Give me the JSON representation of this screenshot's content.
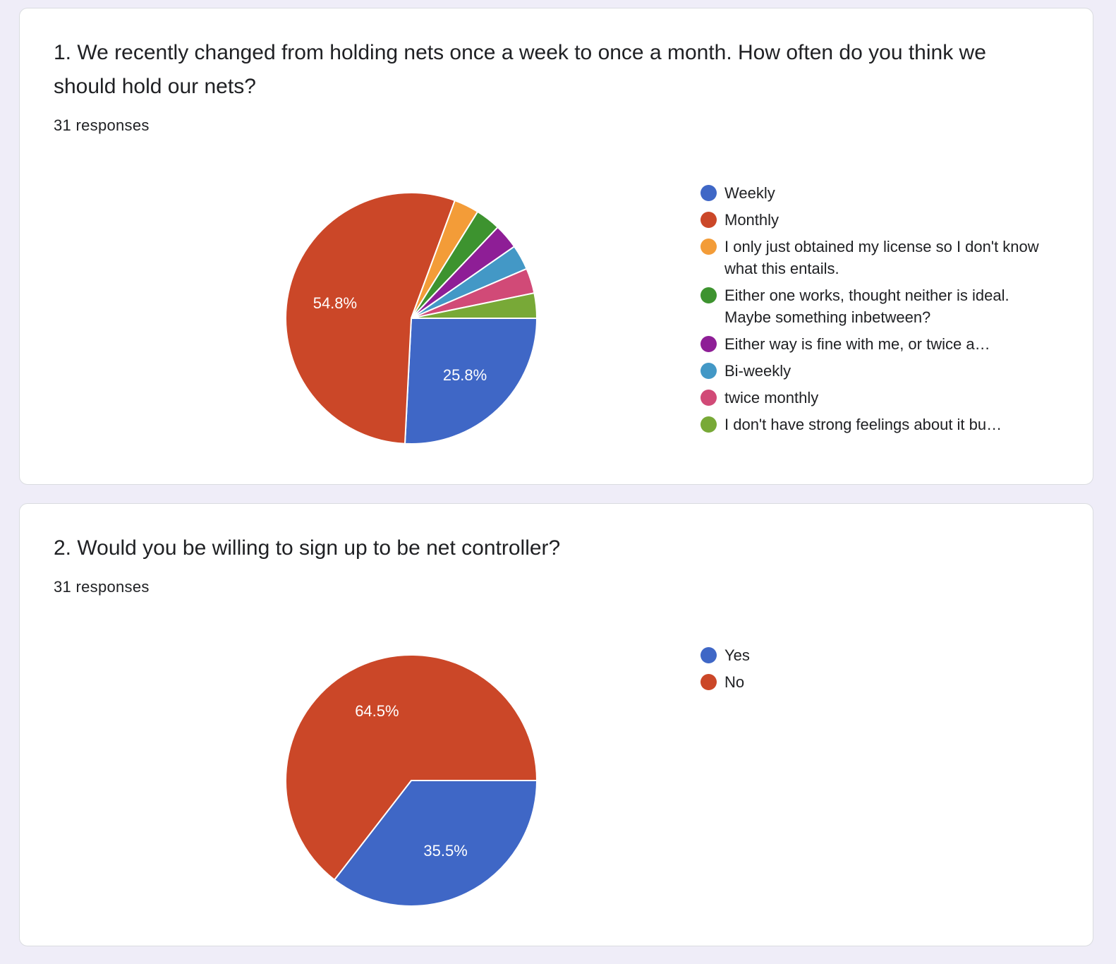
{
  "chart_data": [
    {
      "type": "pie",
      "title": "1. We recently changed from holding nets once a week to once a month. How often do you think we should hold our nets?",
      "responses_label": "31 responses",
      "legend_position": "right",
      "slices": [
        {
          "label": "Weekly",
          "value": 8,
          "percent_label": "25.8%",
          "color": "#3f67c6"
        },
        {
          "label": "Monthly",
          "value": 17,
          "percent_label": "54.8%",
          "color": "#cb4728"
        },
        {
          "label": "I only just obtained my license so I don't know what this entails.",
          "value": 1,
          "percent_label": "",
          "color": "#f39c38"
        },
        {
          "label": "Either one works, thought neither is ideal. Maybe something inbetween?",
          "value": 1,
          "percent_label": "",
          "color": "#3d932f"
        },
        {
          "label": "Either way is fine with me, or twice a…",
          "value": 1,
          "percent_label": "",
          "color": "#8e1e96"
        },
        {
          "label": "Bi-weekly",
          "value": 1,
          "percent_label": "",
          "color": "#4398c6"
        },
        {
          "label": "twice monthly",
          "value": 1,
          "percent_label": "",
          "color": "#d14a77"
        },
        {
          "label": "I don't have strong feelings about it bu…",
          "value": 1,
          "percent_label": "",
          "color": "#78a937"
        }
      ]
    },
    {
      "type": "pie",
      "title": "2. Would you be willing to sign up to be net controller?",
      "responses_label": "31 responses",
      "legend_position": "right",
      "slices": [
        {
          "label": "Yes",
          "value": 11,
          "percent_label": "35.5%",
          "color": "#3f67c6"
        },
        {
          "label": "No",
          "value": 20,
          "percent_label": "64.5%",
          "color": "#cb4728"
        }
      ]
    }
  ]
}
